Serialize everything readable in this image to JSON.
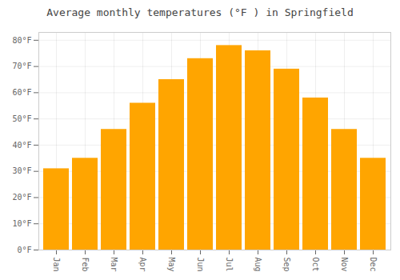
{
  "chart_data": {
    "type": "bar",
    "title": "Average monthly temperatures (°F ) in Springfield",
    "categories": [
      "Jan",
      "Feb",
      "Mar",
      "Apr",
      "May",
      "Jun",
      "Jul",
      "Aug",
      "Sep",
      "Oct",
      "Nov",
      "Dec"
    ],
    "values": [
      31,
      35,
      46,
      56,
      65,
      73,
      78,
      76,
      69,
      58,
      46,
      35
    ],
    "color": "#FFA500",
    "ylim": [
      0,
      83
    ],
    "yticks": [
      {
        "value": 0,
        "label": "0°F"
      },
      {
        "value": 10,
        "label": "10°F"
      },
      {
        "value": 20,
        "label": "20°F"
      },
      {
        "value": 30,
        "label": "30°F"
      },
      {
        "value": 40,
        "label": "40°F"
      },
      {
        "value": 50,
        "label": "50°F"
      },
      {
        "value": 60,
        "label": "60°F"
      },
      {
        "value": 70,
        "label": "70°F"
      },
      {
        "value": 80,
        "label": "80°F"
      }
    ],
    "grid": true
  }
}
